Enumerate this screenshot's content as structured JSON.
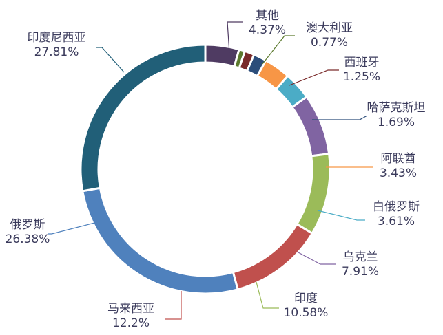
{
  "chart_data": {
    "type": "pie",
    "style": "donut",
    "title": "",
    "legend": "none",
    "slices": [
      {
        "name": "其他",
        "label": "4.37%",
        "value": 4.37,
        "color": "#4f3b62"
      },
      {
        "name": "澳大利亚",
        "label": "0.77%",
        "value": 0.77,
        "color": "#5c7a2e"
      },
      {
        "name": "西班牙",
        "label": "1.25%",
        "value": 1.25,
        "color": "#7a2a2a"
      },
      {
        "name": "哈萨克斯坦",
        "label": "1.69%",
        "value": 1.69,
        "color": "#2c4d7a"
      },
      {
        "name": "阿联酋",
        "label": "3.43%",
        "value": 3.43,
        "color": "#f79646"
      },
      {
        "name": "白俄罗斯",
        "label": "3.61%",
        "value": 3.61,
        "color": "#4bacc6"
      },
      {
        "name": "乌克兰",
        "label": "7.91%",
        "value": 7.91,
        "color": "#8064a2"
      },
      {
        "name": "印度",
        "label": "10.58%",
        "value": 10.58,
        "color": "#9bbb59"
      },
      {
        "name": "马来西亚",
        "label": "12.2%",
        "value": 12.2,
        "color": "#c0504d"
      },
      {
        "name": "俄罗斯",
        "label": "26.38%",
        "value": 26.38,
        "color": "#4f81bd"
      },
      {
        "name": "印度尼西亚",
        "label": "27.81%",
        "value": 27.81,
        "color": "#215f78"
      }
    ]
  }
}
